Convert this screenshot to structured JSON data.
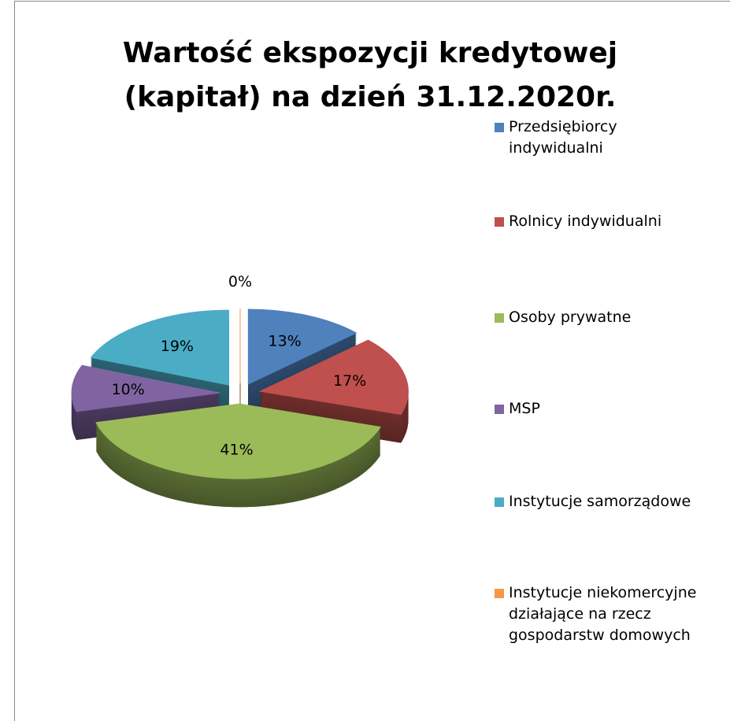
{
  "chart_data": {
    "type": "pie",
    "title": "Wartość ekspozycji kredytowej (kapitał) na dzień 31.12.2020r.",
    "categories": [
      "Przedsiębiorcy indywidualni",
      "Rolnicy indywidualni",
      "Osoby prywatne",
      "MSP",
      "Instytucje samorządowe",
      "Instytucje niekomercyjne działające na rzecz gospodarstw domowych"
    ],
    "values": [
      13,
      17,
      41,
      10,
      19,
      0
    ],
    "value_labels": [
      "13%",
      "17%",
      "41%",
      "10%",
      "19%",
      "0%"
    ],
    "colors": [
      "#4f81bd",
      "#c0504d",
      "#9bbb59",
      "#8064a2",
      "#4bacc6",
      "#f79646"
    ],
    "legend": "right"
  }
}
